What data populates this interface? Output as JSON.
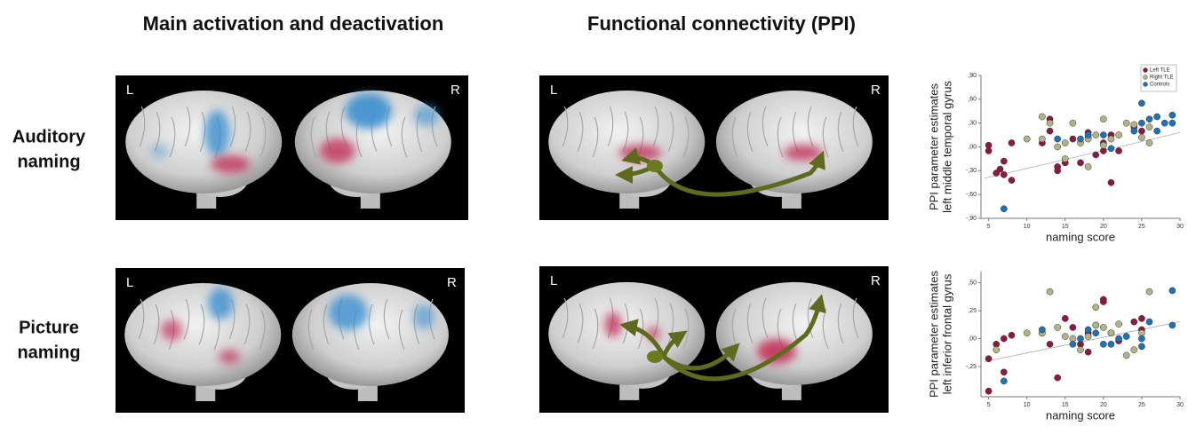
{
  "headers": [
    "Main activation and deactivation",
    "Functional connectivity (PPI)"
  ],
  "rows": [
    [
      "Auditory",
      "naming"
    ],
    [
      "Picture",
      "naming"
    ]
  ],
  "hemisphere_labels": [
    "L",
    "R"
  ],
  "chart_data": [
    {
      "type": "scatter",
      "xlabel": "naming score",
      "ylabel": [
        "PPI parameter estimates",
        "left middle temporal gyrus"
      ],
      "xlim": [
        4,
        30
      ],
      "ylim": [
        -0.9,
        0.9
      ],
      "xticks": [
        5,
        10,
        15,
        20,
        25,
        30
      ],
      "yticks": [
        {
          "value": 0.9,
          "label": ",90"
        },
        {
          "value": 0.6,
          "label": ",60"
        },
        {
          "value": 0.3,
          "label": ",30"
        },
        {
          "value": 0,
          "label": ",00"
        },
        {
          "value": -0.3,
          "label": "-,30"
        },
        {
          "value": -0.6,
          "label": "-,60"
        },
        {
          "value": -0.9,
          "label": "-,90"
        }
      ],
      "legend": "upper right",
      "series": [
        {
          "name": "Left TLE",
          "color": "#8b1a3e",
          "x": [
            5,
            5,
            6,
            6.5,
            7,
            7,
            8,
            8,
            12,
            13,
            13,
            14,
            14,
            15,
            16,
            17,
            18,
            18,
            19,
            20,
            20,
            21,
            21,
            22,
            24,
            25
          ],
          "values": [
            0.02,
            -0.05,
            -0.33,
            -0.28,
            -0.18,
            -0.35,
            0.05,
            -0.42,
            0.05,
            0.35,
            0.2,
            -0.25,
            -0.3,
            -0.2,
            0.1,
            -0.2,
            0.18,
            0.12,
            -0.1,
            0.05,
            -0.05,
            -0.45,
            0.15,
            -0.05,
            0.25,
            0.2
          ]
        },
        {
          "name": "Right TLE",
          "color": "#b3b38a",
          "x": [
            10,
            12,
            12,
            13,
            14,
            15,
            15,
            16,
            17,
            18,
            18,
            19,
            20,
            20,
            21,
            22,
            23,
            24,
            25,
            26,
            26
          ],
          "values": [
            0.1,
            0.38,
            0.1,
            0.3,
            0,
            0.05,
            -0.15,
            0.3,
            0.05,
            -0.25,
            0.1,
            0.15,
            0.35,
            0.02,
            0.1,
            0.15,
            0.3,
            0.28,
            0.12,
            0.05,
            0.25
          ]
        },
        {
          "name": "Controls",
          "color": "#1f73b4",
          "x": [
            7,
            14,
            17,
            18,
            20,
            21,
            24,
            25,
            25,
            26,
            27,
            27,
            28,
            29,
            29
          ],
          "values": [
            -0.78,
            0.1,
            0.1,
            0.15,
            0.15,
            -0.02,
            0.2,
            0.55,
            0.3,
            0.35,
            0.38,
            0.2,
            0.3,
            0.4,
            0.3
          ]
        }
      ]
    },
    {
      "type": "scatter",
      "xlabel": "naming score",
      "ylabel": [
        "PPI parameter estimates",
        "left inferior frontal gyrus"
      ],
      "xlim": [
        4,
        30
      ],
      "ylim": [
        -0.52,
        0.6
      ],
      "xticks": [
        5,
        10,
        15,
        20,
        25,
        30
      ],
      "yticks": [
        {
          "value": 0.5,
          "label": ",50"
        },
        {
          "value": 0.25,
          "label": ",25"
        },
        {
          "value": 0,
          "label": ",00"
        },
        {
          "value": -0.25,
          "label": "-,25"
        }
      ],
      "series": [
        {
          "color": "#8b1a3e",
          "x": [
            5,
            5,
            6,
            7,
            7,
            8,
            12,
            13,
            14,
            15,
            16,
            17,
            18,
            18,
            19,
            20,
            20,
            21,
            22,
            25,
            25,
            24
          ],
          "values": [
            -0.47,
            -0.18,
            -0.05,
            0,
            -0.3,
            0.03,
            0.05,
            -0.05,
            -0.35,
            0.18,
            0.1,
            -0.05,
            0.05,
            -0.12,
            0.12,
            0.33,
            0.35,
            0.05,
            -0.02,
            0.18,
            0.08,
            0.15
          ]
        },
        {
          "color": "#b3b38a",
          "x": [
            6,
            10,
            12,
            13,
            14,
            15,
            16,
            17,
            18,
            19,
            19,
            20,
            21,
            22,
            23,
            25,
            26,
            24
          ],
          "values": [
            -0.1,
            0.05,
            0.05,
            0.42,
            0.1,
            0.02,
            0,
            -0.1,
            0.02,
            0.12,
            0.28,
            0.1,
            0.05,
            0.13,
            -0.15,
            0.05,
            0.42,
            -0.1
          ]
        },
        {
          "color": "#1f73b4",
          "x": [
            7,
            12,
            16,
            17,
            18,
            19,
            20,
            21,
            22,
            23,
            25,
            25,
            26,
            29,
            29
          ],
          "values": [
            -0.38,
            0.08,
            -0.05,
            0,
            0.08,
            0.05,
            -0.05,
            -0.05,
            0,
            0.02,
            -0.07,
            0,
            0.15,
            0.43,
            0.12
          ]
        }
      ]
    }
  ]
}
